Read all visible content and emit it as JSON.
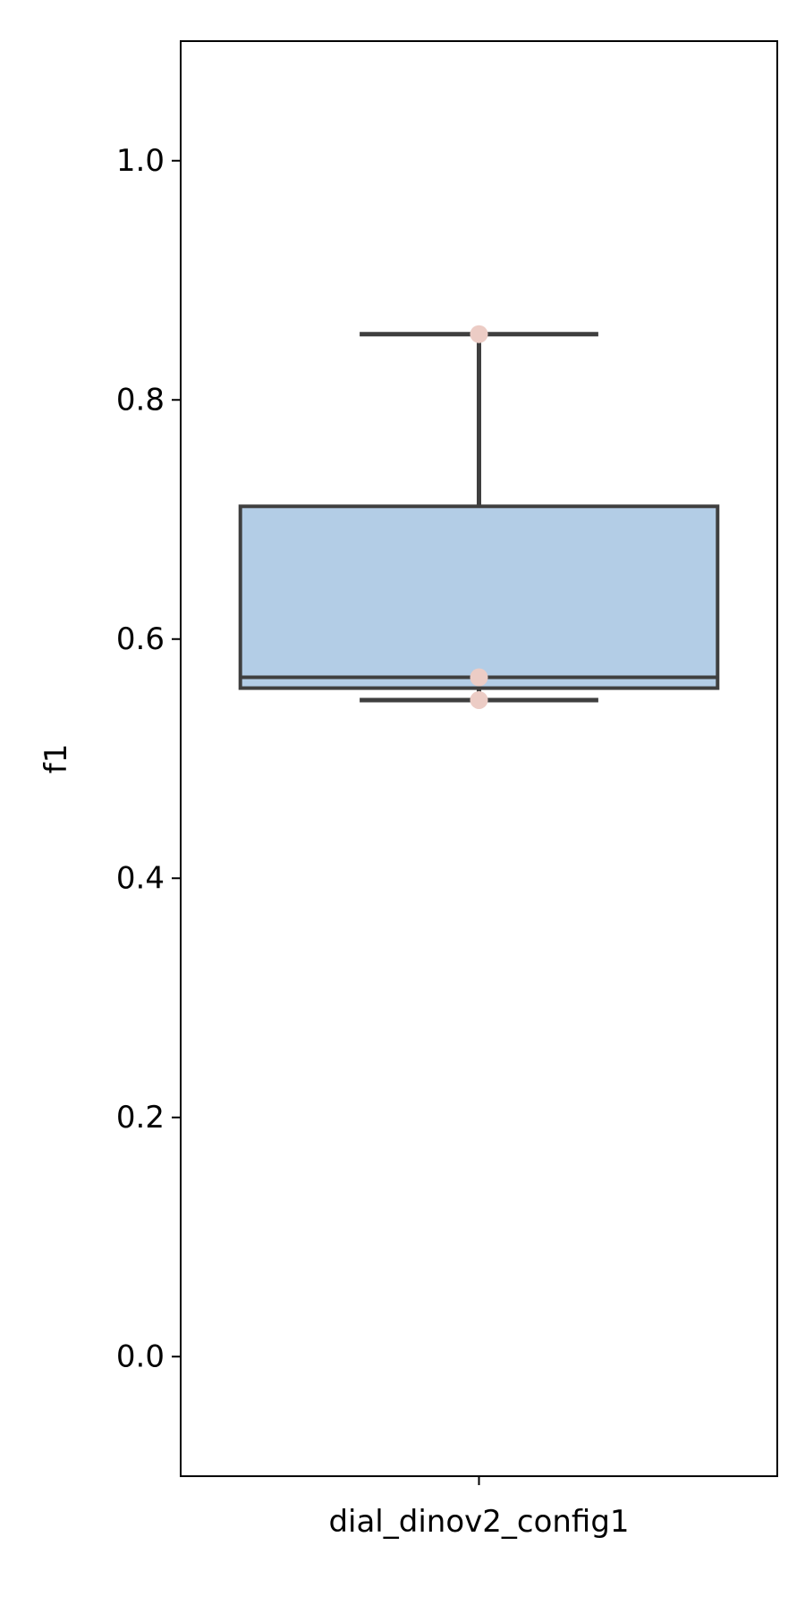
{
  "chart_data": {
    "type": "box",
    "title": "",
    "xlabel": "",
    "ylabel": "f1",
    "ylim": [
      -0.1,
      1.1
    ],
    "yticks": [
      0.0,
      0.2,
      0.4,
      0.6,
      0.8,
      1.0
    ],
    "ytick_labels": [
      "0.0",
      "0.2",
      "0.4",
      "0.6",
      "0.8",
      "1.0"
    ],
    "grid": false,
    "legend": "none",
    "categories": [
      "dial_dinov2_config1"
    ],
    "boxes": [
      {
        "category": "dial_dinov2_config1",
        "whisker_low": 0.549,
        "q1": 0.559,
        "median": 0.568,
        "q3": 0.711,
        "whisker_high": 0.855
      }
    ],
    "points": [
      {
        "category": "dial_dinov2_config1",
        "y": 0.855
      },
      {
        "category": "dial_dinov2_config1",
        "y": 0.568
      },
      {
        "category": "dial_dinov2_config1",
        "y": 0.549
      }
    ],
    "colors": {
      "box_fill": "#b3cde6",
      "box_edge": "#3f3f3f",
      "point": "#ecccc5",
      "axis": "#000000"
    }
  }
}
